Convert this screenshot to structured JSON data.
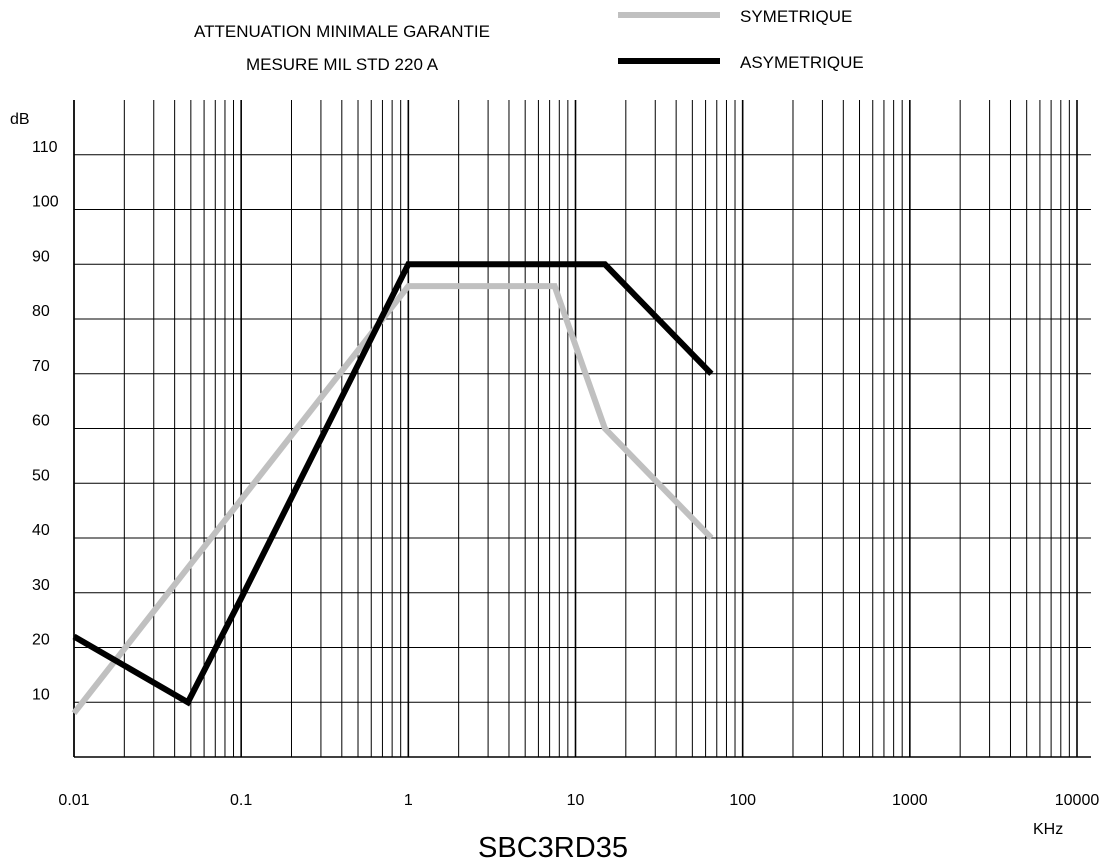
{
  "chart_data": {
    "type": "line",
    "title_lines": [
      "ATTENUATION MINIMALE GARANTIE",
      "MESURE MIL STD 220 A"
    ],
    "ylabel": "dB",
    "xlabel": "KHz",
    "caption": "SBC3RD35",
    "x_scale": "log",
    "xlim": [
      0.01,
      10000
    ],
    "ylim": [
      0,
      120
    ],
    "grid": true,
    "legend_position": "top-right",
    "x_ticks": [
      {
        "value": 0.01,
        "label": "0.01"
      },
      {
        "value": 0.1,
        "label": "0.1"
      },
      {
        "value": 1,
        "label": "1"
      },
      {
        "value": 10,
        "label": "10"
      },
      {
        "value": 100,
        "label": "100"
      },
      {
        "value": 1000,
        "label": "1000"
      },
      {
        "value": 10000,
        "label": "10000"
      }
    ],
    "y_ticks": [
      {
        "value": 10,
        "label": "10"
      },
      {
        "value": 20,
        "label": "20"
      },
      {
        "value": 30,
        "label": "30"
      },
      {
        "value": 40,
        "label": "40"
      },
      {
        "value": 50,
        "label": "50"
      },
      {
        "value": 60,
        "label": "60"
      },
      {
        "value": 70,
        "label": "70"
      },
      {
        "value": 80,
        "label": "80"
      },
      {
        "value": 90,
        "label": "90"
      },
      {
        "value": 100,
        "label": "100"
      },
      {
        "value": 110,
        "label": "110"
      }
    ],
    "series": [
      {
        "name": "SYMETRIQUE",
        "color": "#c0c0c0",
        "x": [
          0.01,
          1,
          7.5,
          15,
          65
        ],
        "y": [
          8,
          86,
          86,
          60,
          40
        ]
      },
      {
        "name": "ASYMETRIQUE",
        "color": "#000000",
        "x": [
          0.01,
          0.048,
          0.1,
          1,
          15,
          65
        ],
        "y": [
          22,
          10,
          29,
          90,
          90,
          70
        ]
      }
    ]
  }
}
